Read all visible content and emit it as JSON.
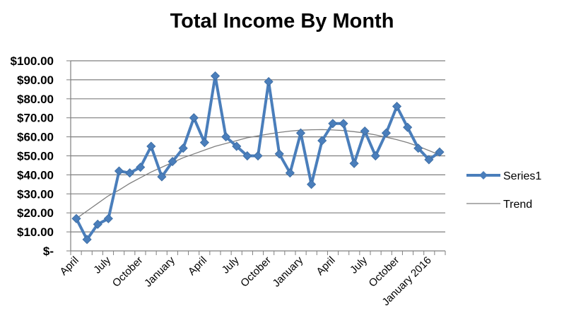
{
  "chart_data": {
    "type": "line",
    "title": "Total Income By Month",
    "xlabel": "",
    "ylabel": "",
    "ylim": [
      0,
      100
    ],
    "y_ticks": [
      {
        "value": 0,
        "label": "$-"
      },
      {
        "value": 10,
        "label": "$10.00"
      },
      {
        "value": 20,
        "label": "$20.00"
      },
      {
        "value": 30,
        "label": "$30.00"
      },
      {
        "value": 40,
        "label": "$40.00"
      },
      {
        "value": 50,
        "label": "$50.00"
      },
      {
        "value": 60,
        "label": "$60.00"
      },
      {
        "value": 70,
        "label": "$70.00"
      },
      {
        "value": 80,
        "label": "$80.00"
      },
      {
        "value": 90,
        "label": "$90.00"
      },
      {
        "value": 100,
        "label": "$100.00"
      }
    ],
    "x_tick_labels": [
      {
        "index": 0,
        "label": "April"
      },
      {
        "index": 3,
        "label": "July"
      },
      {
        "index": 6,
        "label": "October"
      },
      {
        "index": 9,
        "label": "January"
      },
      {
        "index": 12,
        "label": "April"
      },
      {
        "index": 15,
        "label": "July"
      },
      {
        "index": 18,
        "label": "October"
      },
      {
        "index": 21,
        "label": "January"
      },
      {
        "index": 24,
        "label": "April"
      },
      {
        "index": 27,
        "label": "July"
      },
      {
        "index": 30,
        "label": "October"
      },
      {
        "index": 33,
        "label": "January 2016"
      }
    ],
    "grid": true,
    "legend_position": "right",
    "series": [
      {
        "name": "Series1",
        "color": "#4a7ebb",
        "marker": "diamond",
        "values": [
          17,
          6,
          14,
          17,
          42,
          41,
          44,
          55,
          39,
          47,
          54,
          70,
          57,
          92,
          60,
          55,
          50,
          50,
          89,
          51,
          41,
          62,
          35,
          58,
          67,
          67,
          46,
          63,
          50,
          62,
          76,
          65,
          54,
          48,
          52
        ]
      }
    ],
    "trendline": {
      "name": "Trend",
      "color": "#7f7f7f",
      "type": "polynomial",
      "values": [
        17,
        21,
        25,
        29,
        32,
        35.5,
        38.5,
        41.5,
        44,
        46.5,
        49,
        51,
        53,
        55,
        56.5,
        58,
        59.5,
        60.5,
        61.5,
        62.3,
        63,
        63.5,
        63.7,
        63.8,
        63.6,
        63.3,
        62.7,
        62,
        61,
        59.8,
        58.5,
        57,
        55,
        52.8,
        50.5
      ]
    }
  }
}
